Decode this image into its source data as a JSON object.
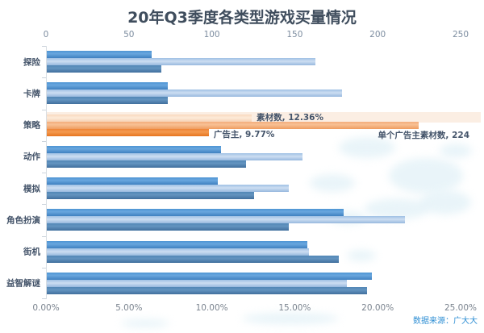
{
  "title": "20年Q3季度各类型游戏买量情况",
  "source": "数据来源：广大大",
  "chart_data": {
    "type": "bar",
    "orientation": "horizontal",
    "title": "20年Q3季度各类型游戏买量情况",
    "categories": [
      "探险",
      "卡牌",
      "策略",
      "动作",
      "模拟",
      "角色扮演",
      "街机",
      "益智解谜"
    ],
    "series": [
      {
        "name": "素材数",
        "axis": "bottom_percent",
        "unit": "%",
        "values": [
          6.3,
          7.3,
          12.36,
          10.5,
          10.3,
          17.9,
          15.7,
          19.6
        ]
      },
      {
        "name": "单个广告主素材数",
        "axis": "top_count",
        "unit": "count",
        "values": [
          162,
          178,
          224,
          154,
          146,
          216,
          158,
          181
        ]
      },
      {
        "name": "广告主",
        "axis": "bottom_percent",
        "unit": "%",
        "values": [
          6.9,
          7.3,
          9.77,
          12.0,
          12.5,
          14.6,
          17.6,
          19.3
        ]
      }
    ],
    "highlight": {
      "category": "策略",
      "labels": [
        "素材数, 12.36%",
        "广告主, 9.77%",
        "单个广告主素材数, 224"
      ]
    },
    "top_axis": {
      "range": [
        0,
        250
      ],
      "ticks": [
        "0",
        "50",
        "100",
        "150",
        "200",
        "250"
      ]
    },
    "bottom_axis": {
      "range": [
        0,
        25
      ],
      "ticks": [
        "0.00%",
        "5.00%",
        "10.00%",
        "15.00%",
        "20.00%",
        "25.00%"
      ]
    },
    "legend": "none",
    "grid": "off",
    "colors": {
      "blue_series": [
        "#4e94d4",
        "#b5cfea",
        "#527fae"
      ],
      "orange_series": [
        "#f9d8be",
        "#f3a876",
        "#ed7d31"
      ],
      "annotation_text": "#44546a",
      "axis_text": "#7d8da0",
      "source_text": "#2f8fd4",
      "highlight_band": "#f9e2d0"
    }
  }
}
